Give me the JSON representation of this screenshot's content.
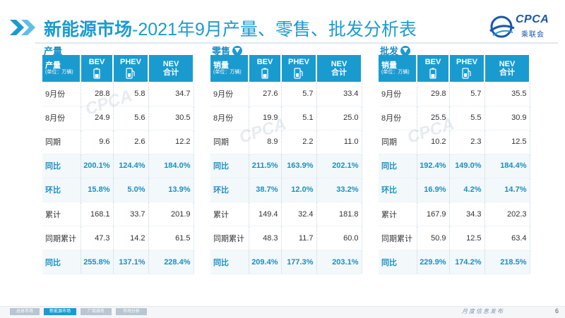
{
  "header": {
    "title_bold": "新能源市场",
    "title_rest": "-2021年9月产量、零售、批发分析表",
    "logo_text": "CPCA",
    "logo_cn": "乘联会"
  },
  "columns": {
    "bev": "BEV",
    "phev": "PHEV",
    "nev_top": "NEV",
    "nev_bottom": "合计",
    "unit": "(单位：万辆)"
  },
  "panels": [
    {
      "label": "产量",
      "first_header": "产量",
      "rows": [
        {
          "label": "9月份",
          "bev": "28.8",
          "phev": "5.8",
          "nev": "34.7",
          "highlight": false
        },
        {
          "label": "8月份",
          "bev": "24.9",
          "phev": "5.6",
          "nev": "30.5",
          "highlight": false
        },
        {
          "label": "同期",
          "bev": "9.6",
          "phev": "2.6",
          "nev": "12.2",
          "highlight": false
        },
        {
          "label": "同比",
          "bev": "200.1%",
          "phev": "124.4%",
          "nev": "184.0%",
          "highlight": true
        },
        {
          "label": "环比",
          "bev": "15.8%",
          "phev": "5.0%",
          "nev": "13.9%",
          "highlight": true
        },
        {
          "label": "累计",
          "bev": "168.1",
          "phev": "33.7",
          "nev": "201.9",
          "highlight": false
        },
        {
          "label": "同期累计",
          "bev": "47.3",
          "phev": "14.2",
          "nev": "61.5",
          "highlight": false
        },
        {
          "label": "同比",
          "bev": "255.8%",
          "phev": "137.1%",
          "nev": "228.4%",
          "highlight": true
        }
      ]
    },
    {
      "label": "零售",
      "first_header": "销量",
      "rows": [
        {
          "label": "9月份",
          "bev": "27.6",
          "phev": "5.7",
          "nev": "33.4",
          "highlight": false
        },
        {
          "label": "8月份",
          "bev": "19.9",
          "phev": "5.1",
          "nev": "25.0",
          "highlight": false
        },
        {
          "label": "同期",
          "bev": "8.9",
          "phev": "2.2",
          "nev": "11.0",
          "highlight": false
        },
        {
          "label": "同比",
          "bev": "211.5%",
          "phev": "163.9%",
          "nev": "202.1%",
          "highlight": true
        },
        {
          "label": "环比",
          "bev": "38.7%",
          "phev": "12.0%",
          "nev": "33.2%",
          "highlight": true
        },
        {
          "label": "累计",
          "bev": "149.4",
          "phev": "32.4",
          "nev": "181.8",
          "highlight": false
        },
        {
          "label": "同期累计",
          "bev": "48.3",
          "phev": "11.7",
          "nev": "60.0",
          "highlight": false
        },
        {
          "label": "同比",
          "bev": "209.4%",
          "phev": "177.3%",
          "nev": "203.1%",
          "highlight": true
        }
      ]
    },
    {
      "label": "批发",
      "first_header": "销量",
      "rows": [
        {
          "label": "9月份",
          "bev": "29.8",
          "phev": "5.7",
          "nev": "35.5",
          "highlight": false
        },
        {
          "label": "8月份",
          "bev": "25.5",
          "phev": "5.5",
          "nev": "30.9",
          "highlight": false
        },
        {
          "label": "同期",
          "bev": "10.2",
          "phev": "2.3",
          "nev": "12.5",
          "highlight": false
        },
        {
          "label": "同比",
          "bev": "192.4%",
          "phev": "149.0%",
          "nev": "184.4%",
          "highlight": true
        },
        {
          "label": "环比",
          "bev": "16.9%",
          "phev": "4.2%",
          "nev": "14.7%",
          "highlight": true
        },
        {
          "label": "累计",
          "bev": "167.9",
          "phev": "34.3",
          "nev": "202.3",
          "highlight": false
        },
        {
          "label": "同期累计",
          "bev": "50.9",
          "phev": "12.5",
          "nev": "63.4",
          "highlight": false
        },
        {
          "label": "同比",
          "bev": "229.9%",
          "phev": "174.2%",
          "nev": "218.5%",
          "highlight": true
        }
      ]
    }
  ],
  "footer": {
    "tabs": [
      "总体市场",
      "新能源市场",
      "厂商排名",
      "市场分析"
    ],
    "active_tab": 1,
    "release_text": "月度信息发布",
    "page_number": "6"
  },
  "colors": {
    "accent": "#1a9bd0",
    "header_text": "#ffffff",
    "highlight_text": "#1a8fc4"
  },
  "icons": {
    "title_marker": "double-chevron-icon",
    "bev": "battery-icon",
    "phev": "fuel-pump-icon",
    "sales_down": "arrow-down-circle-icon"
  }
}
